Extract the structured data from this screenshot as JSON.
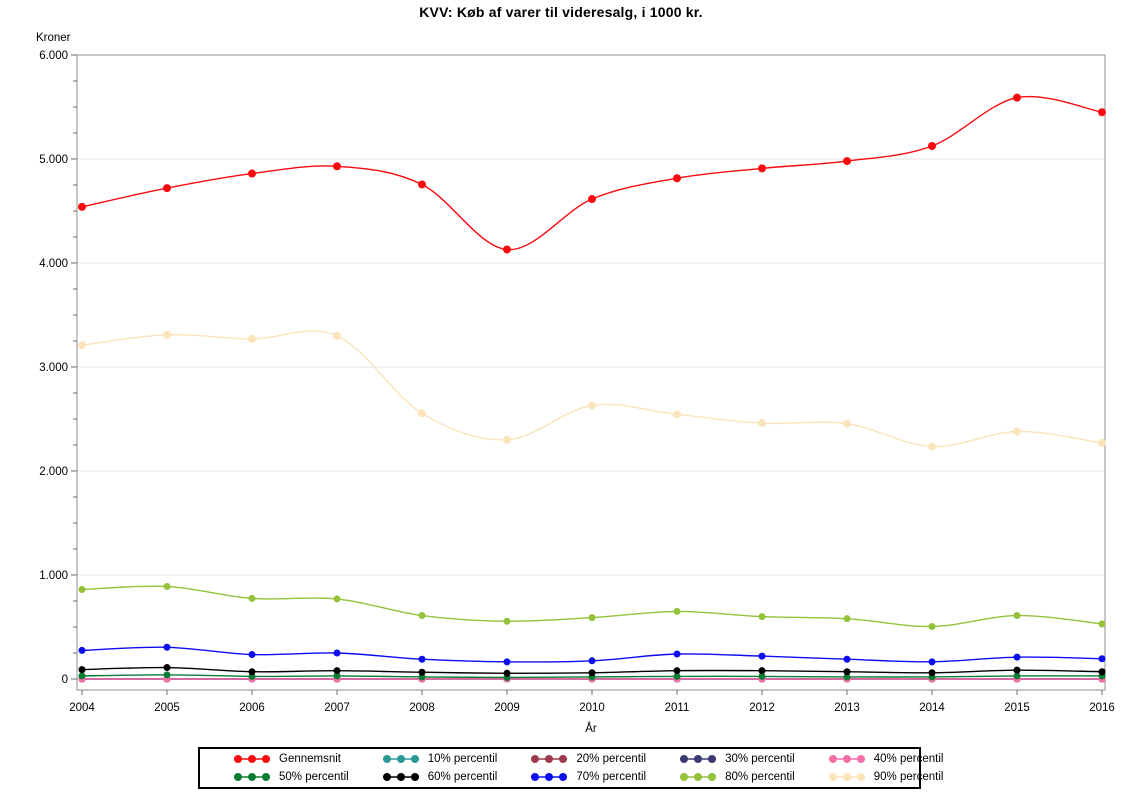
{
  "title": "KVV: Køb af varer til videresalg, i 1000 kr.",
  "colors": {
    "background": "#ffffff",
    "grid": "#e6e6e6",
    "frame": "#8f8f8f",
    "tick": "#6e6e6e",
    "text": "#000000",
    "legend_border": "#000000"
  },
  "chart_data": {
    "type": "line",
    "title": "KVV: Køb af varer til videresalg, i 1000 kr.",
    "xlabel": "År",
    "ylabel": "Kroner",
    "x": [
      2004,
      2005,
      2006,
      2007,
      2008,
      2009,
      2010,
      2011,
      2012,
      2013,
      2014,
      2015,
      2016
    ],
    "x_tick_labels": [
      "2004",
      "2005",
      "2006",
      "2007",
      "2008",
      "2009",
      "2010",
      "2011",
      "2012",
      "2013",
      "2014",
      "2015",
      "2016"
    ],
    "y_tick_labels": [
      "0",
      "1.000",
      "2.000",
      "3.000",
      "4.000",
      "5.000",
      "6.000"
    ],
    "ylim": [
      0,
      6000
    ],
    "y_major_step": 1000,
    "y_minor_step": 250,
    "grid": "horizontal",
    "legend_position": "bottom",
    "interpolation": "spline",
    "series": [
      {
        "name": "Gennemsnit",
        "color": "#fa0a0f",
        "values": [
          4540,
          4720,
          4860,
          4930,
          4755,
          4130,
          4615,
          4815,
          4910,
          4980,
          5125,
          5590,
          5450
        ]
      },
      {
        "name": "10% percentil",
        "color": "#2a9a96",
        "values": [
          0,
          0,
          0,
          0,
          0,
          0,
          0,
          0,
          0,
          0,
          0,
          0,
          0
        ]
      },
      {
        "name": "20% percentil",
        "color": "#9c3a4c",
        "values": [
          0,
          0,
          0,
          0,
          0,
          0,
          0,
          0,
          0,
          0,
          0,
          0,
          0
        ]
      },
      {
        "name": "30% percentil",
        "color": "#3a3a70",
        "values": [
          0,
          0,
          0,
          0,
          0,
          0,
          0,
          0,
          0,
          0,
          0,
          0,
          0
        ]
      },
      {
        "name": "40% percentil",
        "color": "#f76fa8",
        "values": [
          0,
          0,
          0,
          0,
          0,
          0,
          0,
          0,
          0,
          0,
          0,
          0,
          0
        ]
      },
      {
        "name": "50% percentil",
        "color": "#0b7c33",
        "values": [
          30,
          40,
          25,
          30,
          20,
          15,
          20,
          25,
          25,
          20,
          20,
          30,
          30
        ]
      },
      {
        "name": "60% percentil",
        "color": "#000000",
        "values": [
          90,
          110,
          70,
          80,
          65,
          55,
          60,
          80,
          80,
          70,
          60,
          85,
          70
        ]
      },
      {
        "name": "70% percentil",
        "color": "#0d0df2",
        "values": [
          275,
          305,
          235,
          250,
          190,
          165,
          175,
          240,
          220,
          190,
          165,
          210,
          195
        ]
      },
      {
        "name": "80% percentil",
        "color": "#94c23a",
        "values": [
          860,
          890,
          775,
          770,
          610,
          555,
          590,
          650,
          600,
          580,
          505,
          610,
          530
        ]
      },
      {
        "name": "90% percentil",
        "color": "#fbe3ba",
        "values": [
          3210,
          3310,
          3270,
          3300,
          2555,
          2300,
          2630,
          2545,
          2460,
          2455,
          2235,
          2380,
          2270
        ]
      }
    ]
  }
}
